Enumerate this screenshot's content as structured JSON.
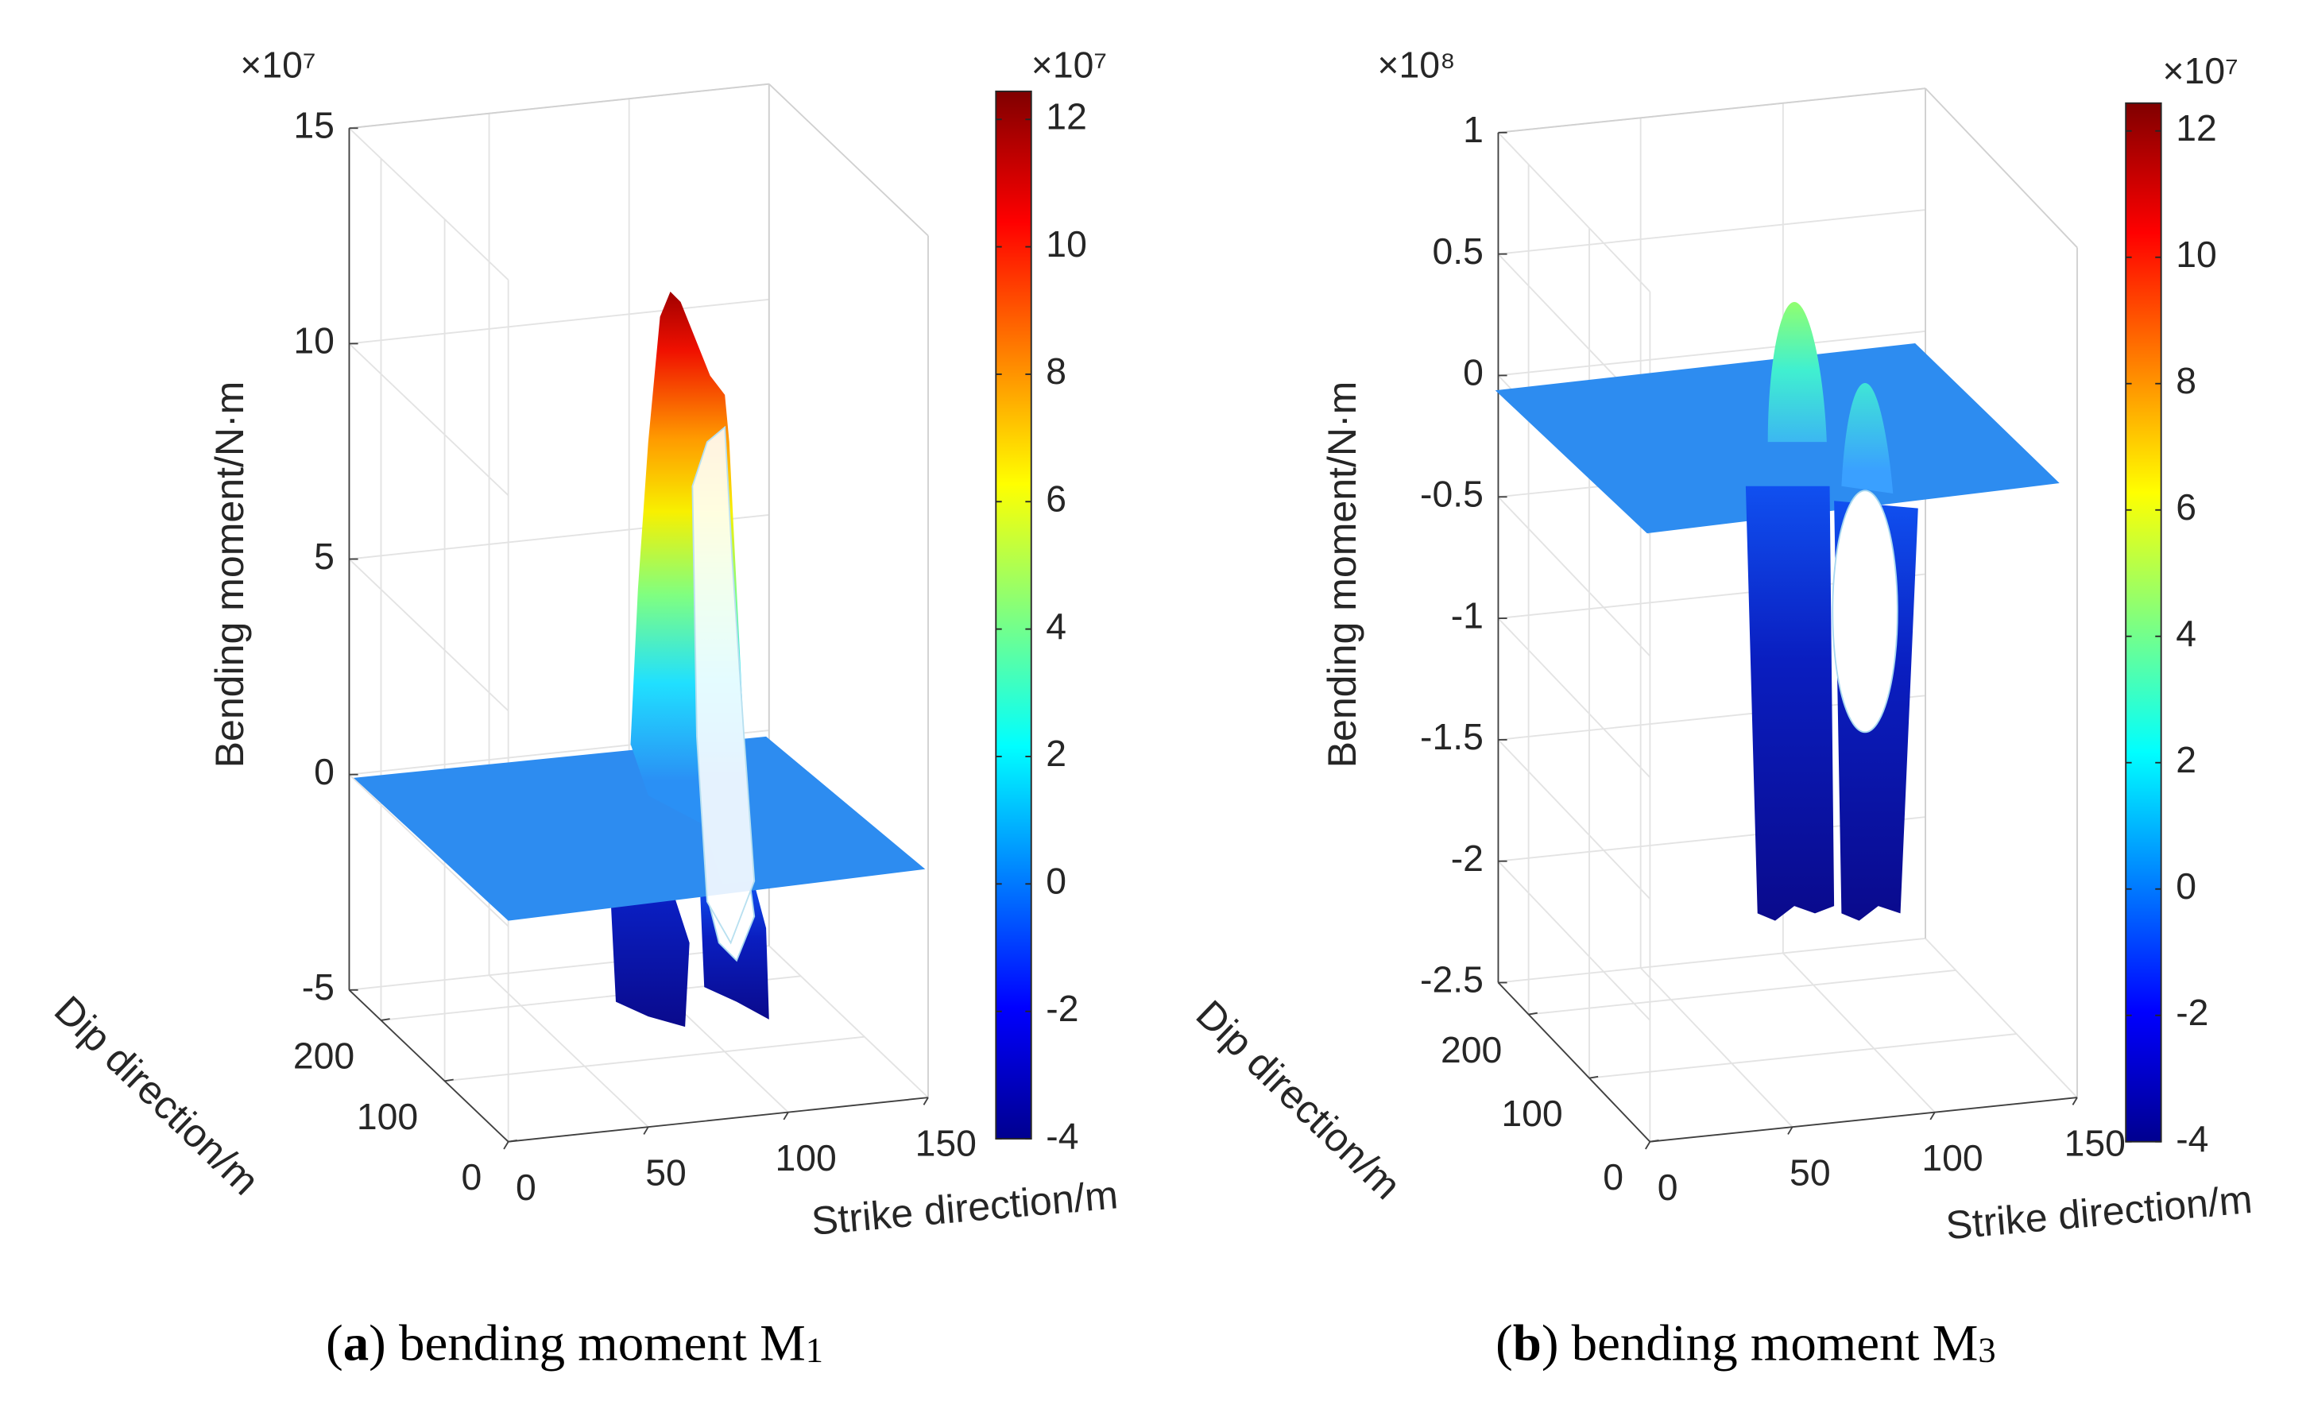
{
  "chart_data": [
    {
      "type": "surface",
      "exponent": "×10⁷",
      "zlabel": "Bending moment/N·m",
      "xlabel": "Strike direction/m",
      "ylabel": "Dip direction/m",
      "xlim": [
        0,
        150
      ],
      "xticks": [
        0,
        50,
        100,
        150
      ],
      "ylim": [
        0,
        250
      ],
      "yticks": [
        0,
        100,
        200
      ],
      "zlim": [
        -5,
        15
      ],
      "zticks": [
        -5,
        0,
        5,
        10,
        15
      ],
      "grid": true,
      "colorbar": {
        "exponent": "×10⁷",
        "clim": [
          -4,
          12.44
        ],
        "ticks": [
          -4,
          -2,
          0,
          2,
          4,
          6,
          8,
          10,
          12
        ],
        "colormap": "jet"
      },
      "caption": {
        "prefix": "(",
        "label": "a",
        "text": ") bending moment M",
        "sub": "1"
      }
    },
    {
      "type": "surface",
      "exponent": "×10⁸",
      "zlabel": "Bending moment/N·m",
      "xlabel": "Strike direction/m",
      "ylabel": "Dip direction/m",
      "xlim": [
        0,
        150
      ],
      "xticks": [
        0,
        50,
        100,
        150
      ],
      "ylim": [
        0,
        250
      ],
      "yticks": [
        0,
        100,
        200
      ],
      "zlim": [
        -2.5,
        1
      ],
      "zticks": [
        -2.5,
        -2,
        -1.5,
        -1,
        -0.5,
        0,
        0.5,
        1
      ],
      "grid": true,
      "colorbar": {
        "exponent": "×10⁷",
        "clim": [
          -4,
          12.44
        ],
        "ticks": [
          -4,
          -2,
          0,
          2,
          4,
          6,
          8,
          10,
          12
        ],
        "colormap": "jet"
      },
      "caption": {
        "prefix": "(",
        "label": "b",
        "text": ") bending moment M",
        "sub": "3"
      }
    }
  ]
}
